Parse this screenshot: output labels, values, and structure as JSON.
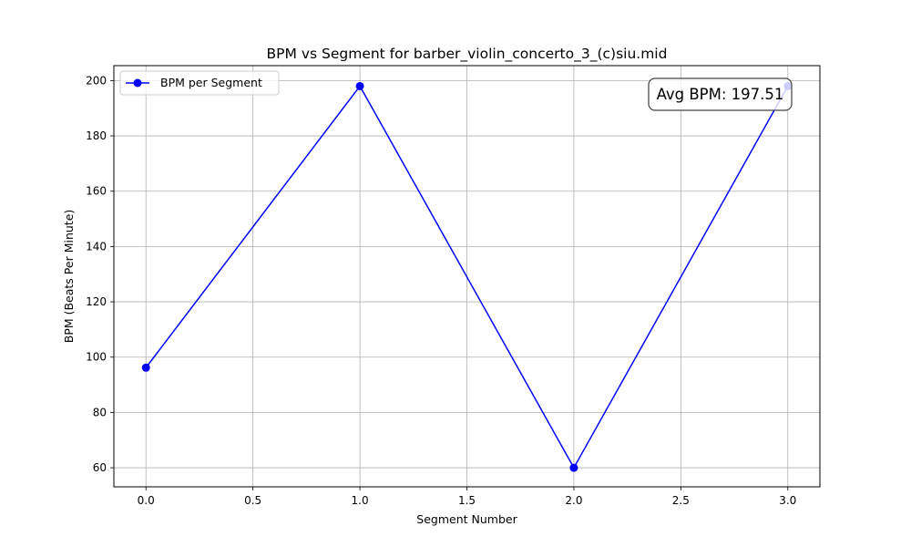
{
  "chart_data": {
    "type": "line",
    "title": "BPM vs Segment for barber_violin_concerto_3_(c)siu.mid",
    "xlabel": "Segment Number",
    "ylabel": "BPM (Beats Per Minute)",
    "xlim": [
      -0.15,
      3.15
    ],
    "ylim": [
      53.1,
      205.4
    ],
    "xticks": [
      0.0,
      0.5,
      1.0,
      1.5,
      2.0,
      2.5,
      3.0
    ],
    "xtick_labels": [
      "0.0",
      "0.5",
      "1.0",
      "1.5",
      "2.0",
      "2.5",
      "3.0"
    ],
    "yticks": [
      60,
      80,
      100,
      120,
      140,
      160,
      180,
      200
    ],
    "ytick_labels": [
      "60",
      "80",
      "100",
      "120",
      "140",
      "160",
      "180",
      "200"
    ],
    "grid": true,
    "legend_position": "upper-left",
    "series": [
      {
        "name": "BPM per Segment",
        "color": "#0000ff",
        "marker": "circle",
        "x": [
          0,
          1,
          2,
          3
        ],
        "y": [
          96.2,
          198.0,
          60.0,
          198.0
        ]
      }
    ],
    "annotation": {
      "text": "Avg BPM: 197.51",
      "position": "top-right"
    }
  }
}
